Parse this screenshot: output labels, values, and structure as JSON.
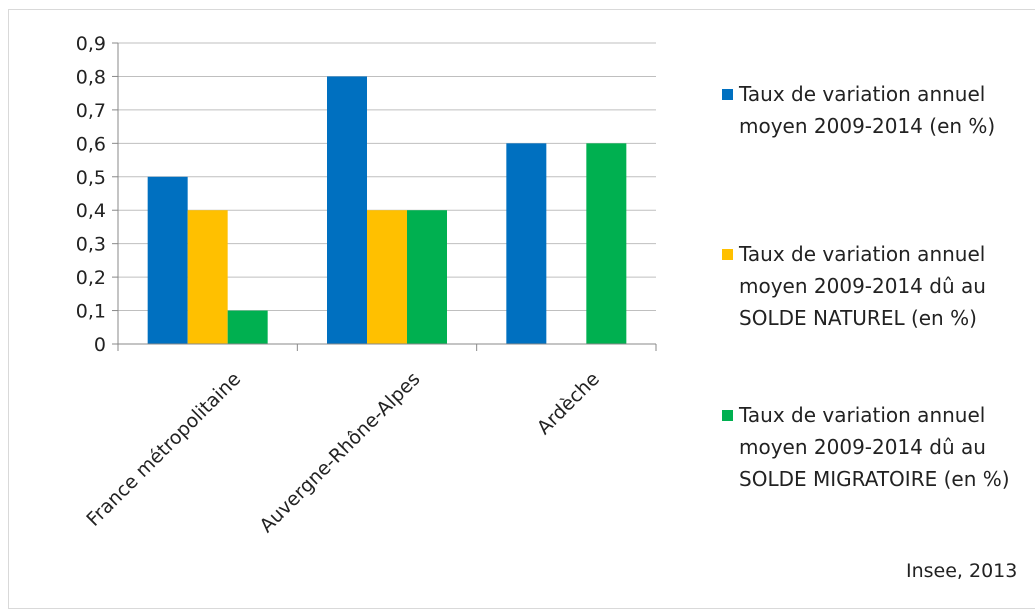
{
  "chart_data": {
    "type": "bar",
    "categories": [
      "France métropolitaine",
      "Auvergne-Rhône-Alpes",
      "Ardèche"
    ],
    "series": [
      {
        "name": "Taux de variation annuel moyen 2009-2014 (en %)",
        "color": "#0070C0",
        "values": [
          0.5,
          0.8,
          0.6
        ]
      },
      {
        "name": "Taux de variation annuel moyen 2009-2014 dû au SOLDE NATUREL (en %)",
        "color": "#FFC000",
        "values": [
          0.4,
          0.4,
          0
        ]
      },
      {
        "name": "Taux de variation annuel moyen 2009-2014 dû au SOLDE MIGRATOIRE  (en %)",
        "color": "#00B050",
        "values": [
          0.1,
          0.4,
          0.6
        ]
      }
    ],
    "ylim": [
      0,
      0.9
    ],
    "yticks": [
      "0",
      "0,1",
      "0,2",
      "0,3",
      "0,4",
      "0,5",
      "0,6",
      "0,7",
      "0,8",
      "0,9"
    ],
    "grid": true,
    "legend_position": "right"
  },
  "source": "Insee, 2013"
}
